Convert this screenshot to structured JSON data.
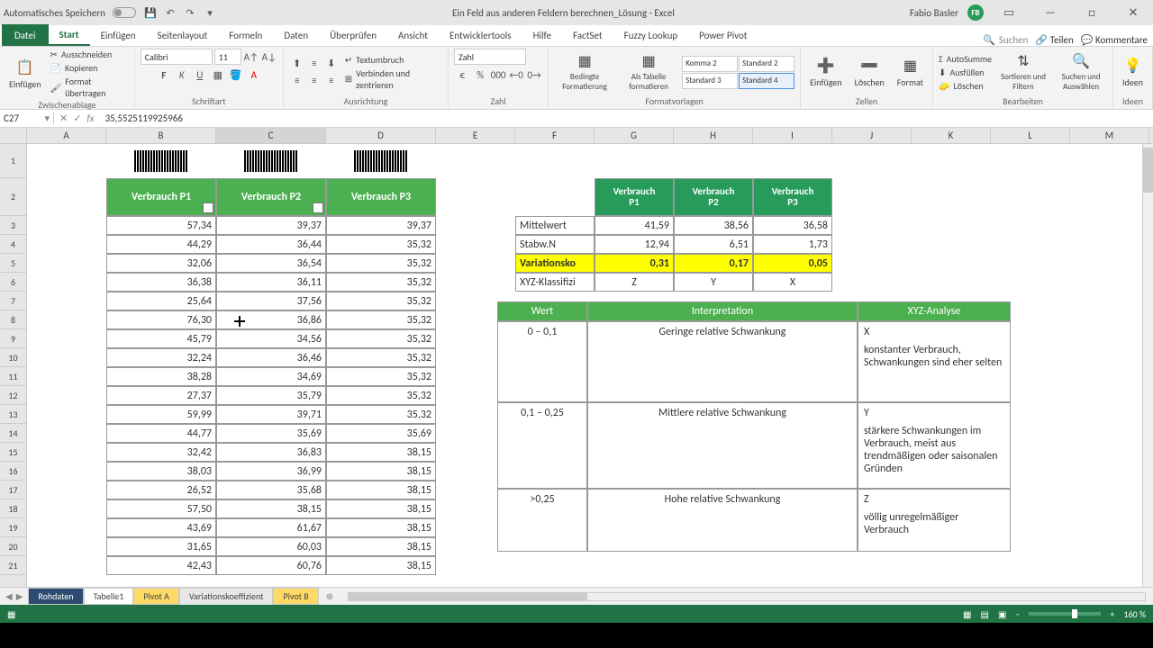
{
  "titlebar": {
    "autosave_label": "Automatisches Speichern",
    "doc_title": "Ein Feld aus anderen Feldern berechnen_Lösung - Excel",
    "user_name": "Fabio Basler",
    "user_initials": "FB"
  },
  "ribbon_tabs": {
    "file": "Datei",
    "tabs": [
      "Start",
      "Einfügen",
      "Seitenlayout",
      "Formeln",
      "Daten",
      "Überprüfen",
      "Ansicht",
      "Entwicklertools",
      "Hilfe",
      "FactSet",
      "Fuzzy Lookup",
      "Power Pivot"
    ],
    "active": "Start",
    "search_placeholder": "Suchen",
    "share": "Teilen",
    "comments": "Kommentare"
  },
  "ribbon": {
    "clipboard": {
      "label": "Zwischenablage",
      "paste": "Einfügen",
      "cut": "Ausschneiden",
      "copy": "Kopieren",
      "formatpaint": "Format übertragen"
    },
    "font": {
      "label": "Schriftart",
      "name": "Calibri",
      "size": "11",
      "bold": "F",
      "italic": "K",
      "underline": "U"
    },
    "align": {
      "label": "Ausrichtung",
      "wrap": "Textumbruch",
      "merge": "Verbinden und zentrieren"
    },
    "number": {
      "label": "Zahl",
      "format": "Zahl"
    },
    "styles": {
      "label": "Formatvorlagen",
      "cond": "Bedingte Formatierung",
      "astable": "Als Tabelle formatieren",
      "gallery": [
        "Komma 2",
        "Standard 2",
        "Standard 3",
        "Standard 4"
      ]
    },
    "cells": {
      "label": "Zellen",
      "insert": "Einfügen",
      "delete": "Löschen",
      "format": "Format"
    },
    "editing": {
      "label": "Bearbeiten",
      "autosum": "AutoSumme",
      "fill": "Ausfüllen",
      "clear": "Löschen",
      "sort": "Sortieren und Filtern",
      "find": "Suchen und Auswählen"
    },
    "ideas": {
      "label": "Ideen",
      "btn": "Ideen"
    }
  },
  "namebox": "C27",
  "formula": "35,5525119925966",
  "col_headers": [
    "A",
    "B",
    "C",
    "D",
    "E",
    "F",
    "G",
    "H",
    "I",
    "J",
    "K",
    "L",
    "M"
  ],
  "col_widths": {
    "A": 88,
    "B": 122,
    "C": 122,
    "D": 122,
    "E": 88,
    "F": 88,
    "G": 88,
    "H": 88,
    "I": 88,
    "J": 88,
    "K": 88,
    "L": 88,
    "M": 88
  },
  "row_heights": {
    "r1": 38,
    "r2": 42,
    "default": 21
  },
  "row_count": 21,
  "main_headers": [
    "Verbrauch P1",
    "Verbrauch P2",
    "Verbrauch P3"
  ],
  "data_rows": [
    [
      "57,34",
      "39,37",
      "39,37"
    ],
    [
      "44,29",
      "36,44",
      "35,32"
    ],
    [
      "32,06",
      "36,54",
      "35,32"
    ],
    [
      "36,38",
      "36,11",
      "35,32"
    ],
    [
      "25,64",
      "37,56",
      "35,32"
    ],
    [
      "76,30",
      "36,86",
      "35,32"
    ],
    [
      "45,79",
      "34,56",
      "35,32"
    ],
    [
      "32,24",
      "36,46",
      "35,32"
    ],
    [
      "38,28",
      "34,69",
      "35,32"
    ],
    [
      "27,37",
      "35,79",
      "35,32"
    ],
    [
      "59,99",
      "39,71",
      "35,32"
    ],
    [
      "44,77",
      "35,69",
      "35,69"
    ],
    [
      "32,42",
      "36,83",
      "38,15"
    ],
    [
      "38,03",
      "36,99",
      "38,15"
    ],
    [
      "26,52",
      "35,68",
      "38,15"
    ],
    [
      "57,50",
      "38,15",
      "38,15"
    ],
    [
      "43,69",
      "61,67",
      "38,15"
    ],
    [
      "31,65",
      "60,03",
      "38,15"
    ],
    [
      "42,43",
      "60,76",
      "38,15"
    ]
  ],
  "stats_headers": [
    "Verbrauch P1",
    "Verbrauch P2",
    "Verbrauch P3"
  ],
  "stats_rows": [
    {
      "label": "Mittelwert",
      "vals": [
        "41,59",
        "38,56",
        "36,58"
      ],
      "style": ""
    },
    {
      "label": "Stabw.N",
      "vals": [
        "12,94",
        "6,51",
        "1,73"
      ],
      "style": ""
    },
    {
      "label": "Variationsko",
      "vals": [
        "0,31",
        "0,17",
        "0,05"
      ],
      "style": "yel"
    },
    {
      "label": "XYZ-Klassifizi",
      "vals": [
        "Z",
        "Y",
        "X"
      ],
      "style": "center"
    }
  ],
  "interp_table": {
    "headers": [
      "Wert",
      "Interpretation",
      "XYZ-Analyse"
    ],
    "rows": [
      {
        "wert": "0 – 0,1",
        "interp": "Geringe relative Schwankung",
        "xyz": "X",
        "desc": "konstanter Verbrauch, Schwankungen sind eher selten"
      },
      {
        "wert": "0,1 – 0,25",
        "interp": "Mittlere relative Schwankung",
        "xyz": "Y",
        "desc": "stärkere Schwankungen im Verbrauch, meist aus trendmäßigen oder saisonalen Gründen"
      },
      {
        "wert": ">0,25",
        "interp": "Hohe relative Schwankung",
        "xyz": "Z",
        "desc": "völlig unregelmäßiger Verbrauch"
      }
    ]
  },
  "sheet_tabs": [
    {
      "name": "Rohdaten",
      "cls": "dark"
    },
    {
      "name": "Tabelle1",
      "cls": ""
    },
    {
      "name": "Pivot A",
      "cls": "yellow"
    },
    {
      "name": "Variationskoeffizient",
      "cls": "active"
    },
    {
      "name": "Pivot B",
      "cls": "yellow"
    }
  ],
  "statusbar": {
    "zoom": "160 %"
  },
  "colors": {
    "green_header": "#4caf50",
    "dark_green": "#269b5a",
    "yellow": "#ffff00",
    "excel_green": "#217346",
    "grid_border": "#999999"
  }
}
